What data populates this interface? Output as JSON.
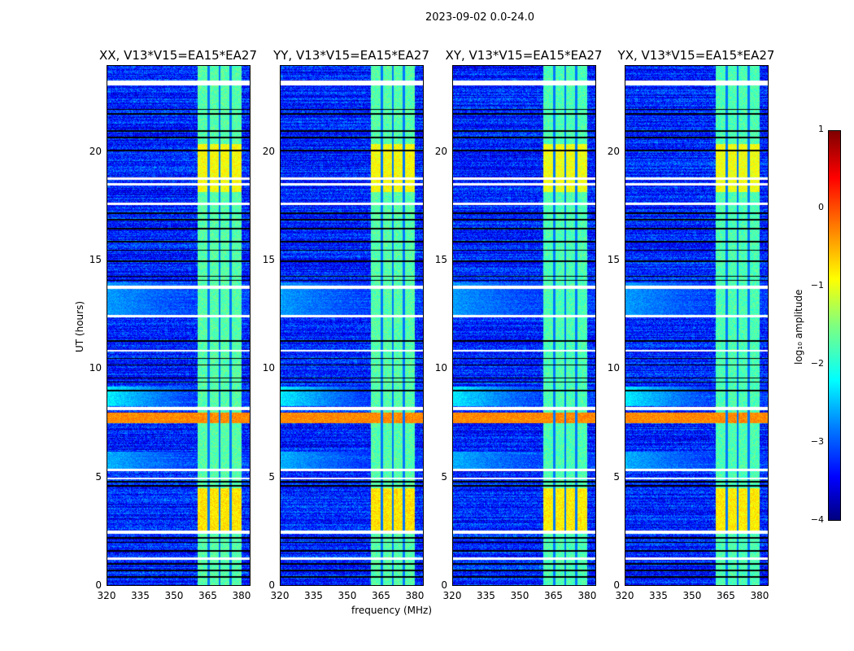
{
  "chart_data": {
    "type": "heatmap",
    "suptitle": "2023-09-02 0.0-24.0",
    "panels": [
      {
        "title": "XX, V13*V15=EA15*EA27"
      },
      {
        "title": "YY, V13*V15=EA15*EA27"
      },
      {
        "title": "XY, V13*V15=EA15*EA27"
      },
      {
        "title": "YX, V13*V15=EA15*EA27"
      }
    ],
    "xlabel": "frequency (MHz)",
    "ylabel": "UT (hours)",
    "xlim": [
      320,
      384
    ],
    "ylim": [
      0,
      24
    ],
    "xticks": [
      "320",
      "335",
      "350",
      "365",
      "380"
    ],
    "xtick_values": [
      320,
      335,
      350,
      365,
      380
    ],
    "yticks": [
      "0",
      "5",
      "10",
      "15",
      "20"
    ],
    "ytick_values": [
      0,
      5,
      10,
      15,
      20
    ],
    "colorbar": {
      "label": "log₁₀ amplitude",
      "ticks": [
        "1",
        "0",
        "−1",
        "−2",
        "−3",
        "−4"
      ],
      "tick_values": [
        1,
        0,
        -1,
        -2,
        -3,
        -4
      ],
      "range": [
        -4,
        1
      ],
      "colormap": "jet"
    },
    "background_level": -3.2,
    "rfi_band_mhz": [
      360.5,
      380
    ],
    "rfi_subband_edges_mhz": [
      365.3,
      370.3,
      375.3
    ],
    "rfi_levels": [
      {
        "hours": [
          18.2,
          20.4
        ],
        "value": -0.9
      },
      {
        "hours": [
          2.5,
          4.5
        ],
        "value": -0.75
      },
      {
        "hours": [
          0,
          24
        ],
        "value": -1.7
      }
    ],
    "broadband_events": [
      {
        "hours": [
          7.5,
          8.0
        ],
        "value": -0.3
      },
      {
        "hours": [
          8.3,
          9.2
        ],
        "value": -2.2
      },
      {
        "hours": [
          5.3,
          6.2
        ],
        "value": -2.5
      },
      {
        "hours": [
          12.5,
          14.0
        ],
        "value": -2.6
      }
    ],
    "flagged_hours": [
      [
        23.1,
        23.35
      ],
      [
        18.75,
        18.85
      ],
      [
        18.5,
        18.6
      ],
      [
        13.7,
        13.85
      ],
      [
        12.4,
        12.5
      ],
      [
        8.1,
        8.25
      ],
      [
        5.3,
        5.4
      ],
      [
        4.9,
        5.0
      ],
      [
        2.4,
        2.55
      ],
      [
        17.6,
        17.7
      ],
      [
        10.8,
        10.9
      ],
      [
        1.2,
        1.3
      ]
    ],
    "dark_rows_hours": [
      22.0,
      21.8,
      21.0,
      20.7,
      20.1,
      17.2,
      16.9,
      16.5,
      15.9,
      15.5,
      15.0,
      14.3,
      14.1,
      11.3,
      10.5,
      10.2,
      9.6,
      9.4,
      9.0,
      4.8,
      4.6,
      2.2,
      2.0,
      1.6,
      1.0,
      0.7,
      0.4
    ]
  }
}
